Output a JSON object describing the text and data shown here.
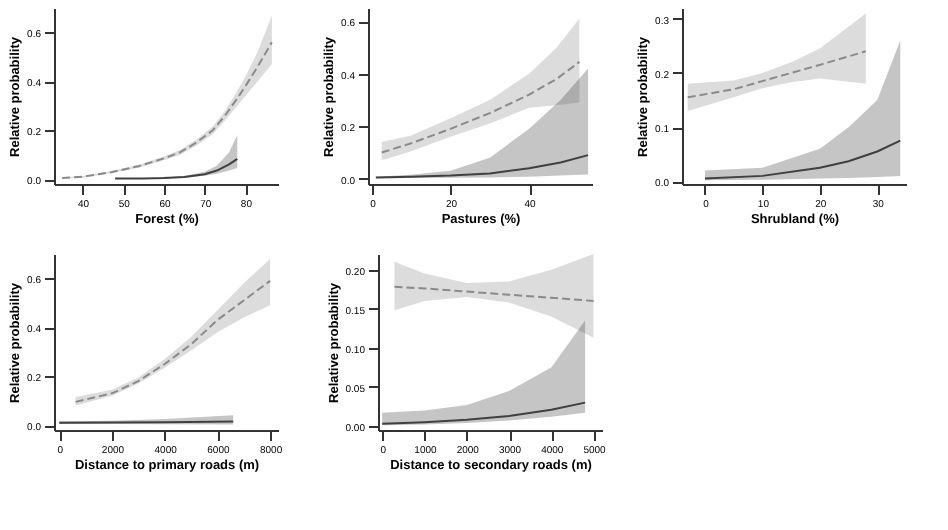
{
  "chart_data": [
    {
      "type": "line",
      "xlabel": "Forest (%)",
      "ylabel": "Relative probability",
      "xlim": [
        33,
        88
      ],
      "ylim": [
        -0.02,
        0.7
      ],
      "xticks": [
        40,
        50,
        60,
        70,
        80
      ],
      "yticks": [
        {
          "value": 0,
          "label": "0.0"
        },
        0.2,
        0.4,
        0.6
      ],
      "series": [
        {
          "color": "#8a8a8a",
          "line_style": "dashed",
          "x": [
            35,
            40,
            47,
            54,
            60,
            64,
            68,
            72,
            75,
            78,
            80,
            83,
            86.5
          ],
          "values": [
            0.005,
            0.01,
            0.028,
            0.054,
            0.085,
            0.11,
            0.15,
            0.2,
            0.26,
            0.33,
            0.38,
            0.46,
            0.56
          ],
          "lower": [
            0.003,
            0.007,
            0.024,
            0.048,
            0.077,
            0.1,
            0.138,
            0.185,
            0.24,
            0.3,
            0.34,
            0.4,
            0.47
          ],
          "upper": [
            0.007,
            0.013,
            0.032,
            0.06,
            0.093,
            0.12,
            0.162,
            0.215,
            0.28,
            0.36,
            0.42,
            0.52,
            0.67
          ]
        },
        {
          "color": "#404040",
          "line_style": "solid",
          "x": [
            48,
            55,
            60,
            65,
            70,
            73,
            76,
            78
          ],
          "values": [
            0.002,
            0.003,
            0.005,
            0.009,
            0.02,
            0.035,
            0.06,
            0.083
          ],
          "lower": [
            0.001,
            0.002,
            0.003,
            0.006,
            0.014,
            0.022,
            0.035,
            0.045
          ],
          "upper": [
            0.003,
            0.004,
            0.007,
            0.013,
            0.03,
            0.055,
            0.11,
            0.18
          ]
        }
      ]
    },
    {
      "type": "line",
      "xlabel": "Pastures (%)",
      "ylabel": "Relative probability",
      "xlim": [
        -1,
        56
      ],
      "ylim": [
        -0.02,
        0.65
      ],
      "xticks": [
        0,
        20,
        40
      ],
      "yticks": [
        {
          "value": 0,
          "label": "0.0"
        },
        0.2,
        0.4,
        0.6
      ],
      "series": [
        {
          "color": "#8a8a8a",
          "line_style": "dashed",
          "x": [
            2.5,
            10,
            20,
            30,
            40,
            47,
            52.8
          ],
          "values": [
            0.1,
            0.135,
            0.19,
            0.25,
            0.32,
            0.38,
            0.445
          ],
          "lower": [
            0.07,
            0.105,
            0.16,
            0.21,
            0.27,
            0.28,
            0.29
          ],
          "upper": [
            0.14,
            0.165,
            0.23,
            0.3,
            0.4,
            0.5,
            0.61
          ]
        },
        {
          "color": "#404040",
          "line_style": "solid",
          "x": [
            1,
            10,
            20,
            30,
            40,
            48,
            55
          ],
          "values": [
            0.005,
            0.008,
            0.012,
            0.02,
            0.04,
            0.062,
            0.09
          ],
          "lower": [
            0.002,
            0.003,
            0.004,
            0.005,
            0.008,
            0.012,
            0.016
          ],
          "upper": [
            0.008,
            0.015,
            0.03,
            0.08,
            0.19,
            0.3,
            0.42
          ]
        }
      ]
    },
    {
      "type": "line",
      "xlabel": "Shrubland (%)",
      "ylabel": "Relative probability",
      "xlim": [
        -4,
        35
      ],
      "ylim": [
        -0.005,
        0.32
      ],
      "xticks": [
        0,
        10,
        20,
        30
      ],
      "yticks": [
        {
          "value": 0,
          "label": "0.0"
        },
        0.1,
        0.2,
        0.3
      ],
      "series": [
        {
          "color": "#8a8a8a",
          "line_style": "dashed",
          "x": [
            -3,
            5,
            10,
            15,
            20,
            28
          ],
          "values": [
            0.155,
            0.17,
            0.185,
            0.2,
            0.215,
            0.24
          ],
          "lower": [
            0.13,
            0.155,
            0.172,
            0.183,
            0.19,
            0.18
          ],
          "upper": [
            0.18,
            0.186,
            0.2,
            0.22,
            0.245,
            0.31
          ]
        },
        {
          "color": "#404040",
          "line_style": "solid",
          "x": [
            0,
            10,
            20,
            25,
            30,
            34
          ],
          "values": [
            0.005,
            0.01,
            0.025,
            0.037,
            0.055,
            0.075
          ],
          "lower": [
            0.002,
            0.003,
            0.005,
            0.006,
            0.008,
            0.01
          ],
          "upper": [
            0.02,
            0.025,
            0.06,
            0.1,
            0.15,
            0.26
          ]
        }
      ]
    },
    {
      "type": "line",
      "xlabel": "Distance to primary roads (m)",
      "ylabel": "Relative probability",
      "xlim": [
        -200,
        8300
      ],
      "ylim": [
        -0.02,
        0.7
      ],
      "xticks": [
        0,
        2000,
        4000,
        6000,
        8000
      ],
      "yticks": [
        {
          "value": 0,
          "label": "0.0"
        },
        0.2,
        0.4,
        0.6
      ],
      "series": [
        {
          "color": "#8a8a8a",
          "line_style": "dashed",
          "x": [
            620,
            2000,
            3000,
            4000,
            5000,
            6000,
            7000,
            8000
          ],
          "values": [
            0.095,
            0.13,
            0.18,
            0.25,
            0.33,
            0.43,
            0.51,
            0.59
          ],
          "lower": [
            0.08,
            0.12,
            0.17,
            0.235,
            0.305,
            0.38,
            0.44,
            0.49
          ],
          "upper": [
            0.115,
            0.145,
            0.195,
            0.27,
            0.36,
            0.47,
            0.58,
            0.68
          ]
        },
        {
          "color": "#404040",
          "line_style": "solid",
          "x": [
            0,
            2000,
            4000,
            6600
          ],
          "values": [
            0.01,
            0.011,
            0.012,
            0.015
          ],
          "lower": [
            0.005,
            0.005,
            0.004,
            0.003
          ],
          "upper": [
            0.015,
            0.018,
            0.025,
            0.04
          ]
        }
      ]
    },
    {
      "type": "line",
      "xlabel": "Distance to secondary roads (m)",
      "ylabel": "Relative probability",
      "xlim": [
        -100,
        5200
      ],
      "ylim": [
        -0.005,
        0.22
      ],
      "xticks": [
        0,
        1000,
        2000,
        3000,
        4000,
        5000
      ],
      "yticks": [
        {
          "value": 0,
          "label": "0.00"
        },
        {
          "value": 0.05,
          "label": "0.05"
        },
        {
          "value": 0.1,
          "label": "0.10"
        },
        {
          "value": 0.15,
          "label": "0.15"
        },
        {
          "value": 0.2,
          "label": "0.20"
        }
      ],
      "series": [
        {
          "color": "#8a8a8a",
          "line_style": "dashed",
          "x": [
            290,
            1000,
            2000,
            3000,
            4000,
            5000
          ],
          "values": [
            0.178,
            0.176,
            0.172,
            0.168,
            0.164,
            0.16
          ],
          "lower": [
            0.148,
            0.16,
            0.165,
            0.158,
            0.14,
            0.113
          ],
          "upper": [
            0.21,
            0.195,
            0.183,
            0.185,
            0.2,
            0.22
          ]
        },
        {
          "color": "#404040",
          "line_style": "solid",
          "x": [
            0,
            1000,
            2000,
            3000,
            4000,
            4800
          ],
          "values": [
            0.003,
            0.005,
            0.008,
            0.013,
            0.021,
            0.03
          ],
          "lower": [
            0.001,
            0.002,
            0.004,
            0.007,
            0.012,
            0.017
          ],
          "upper": [
            0.017,
            0.02,
            0.027,
            0.045,
            0.075,
            0.135
          ]
        }
      ]
    }
  ]
}
